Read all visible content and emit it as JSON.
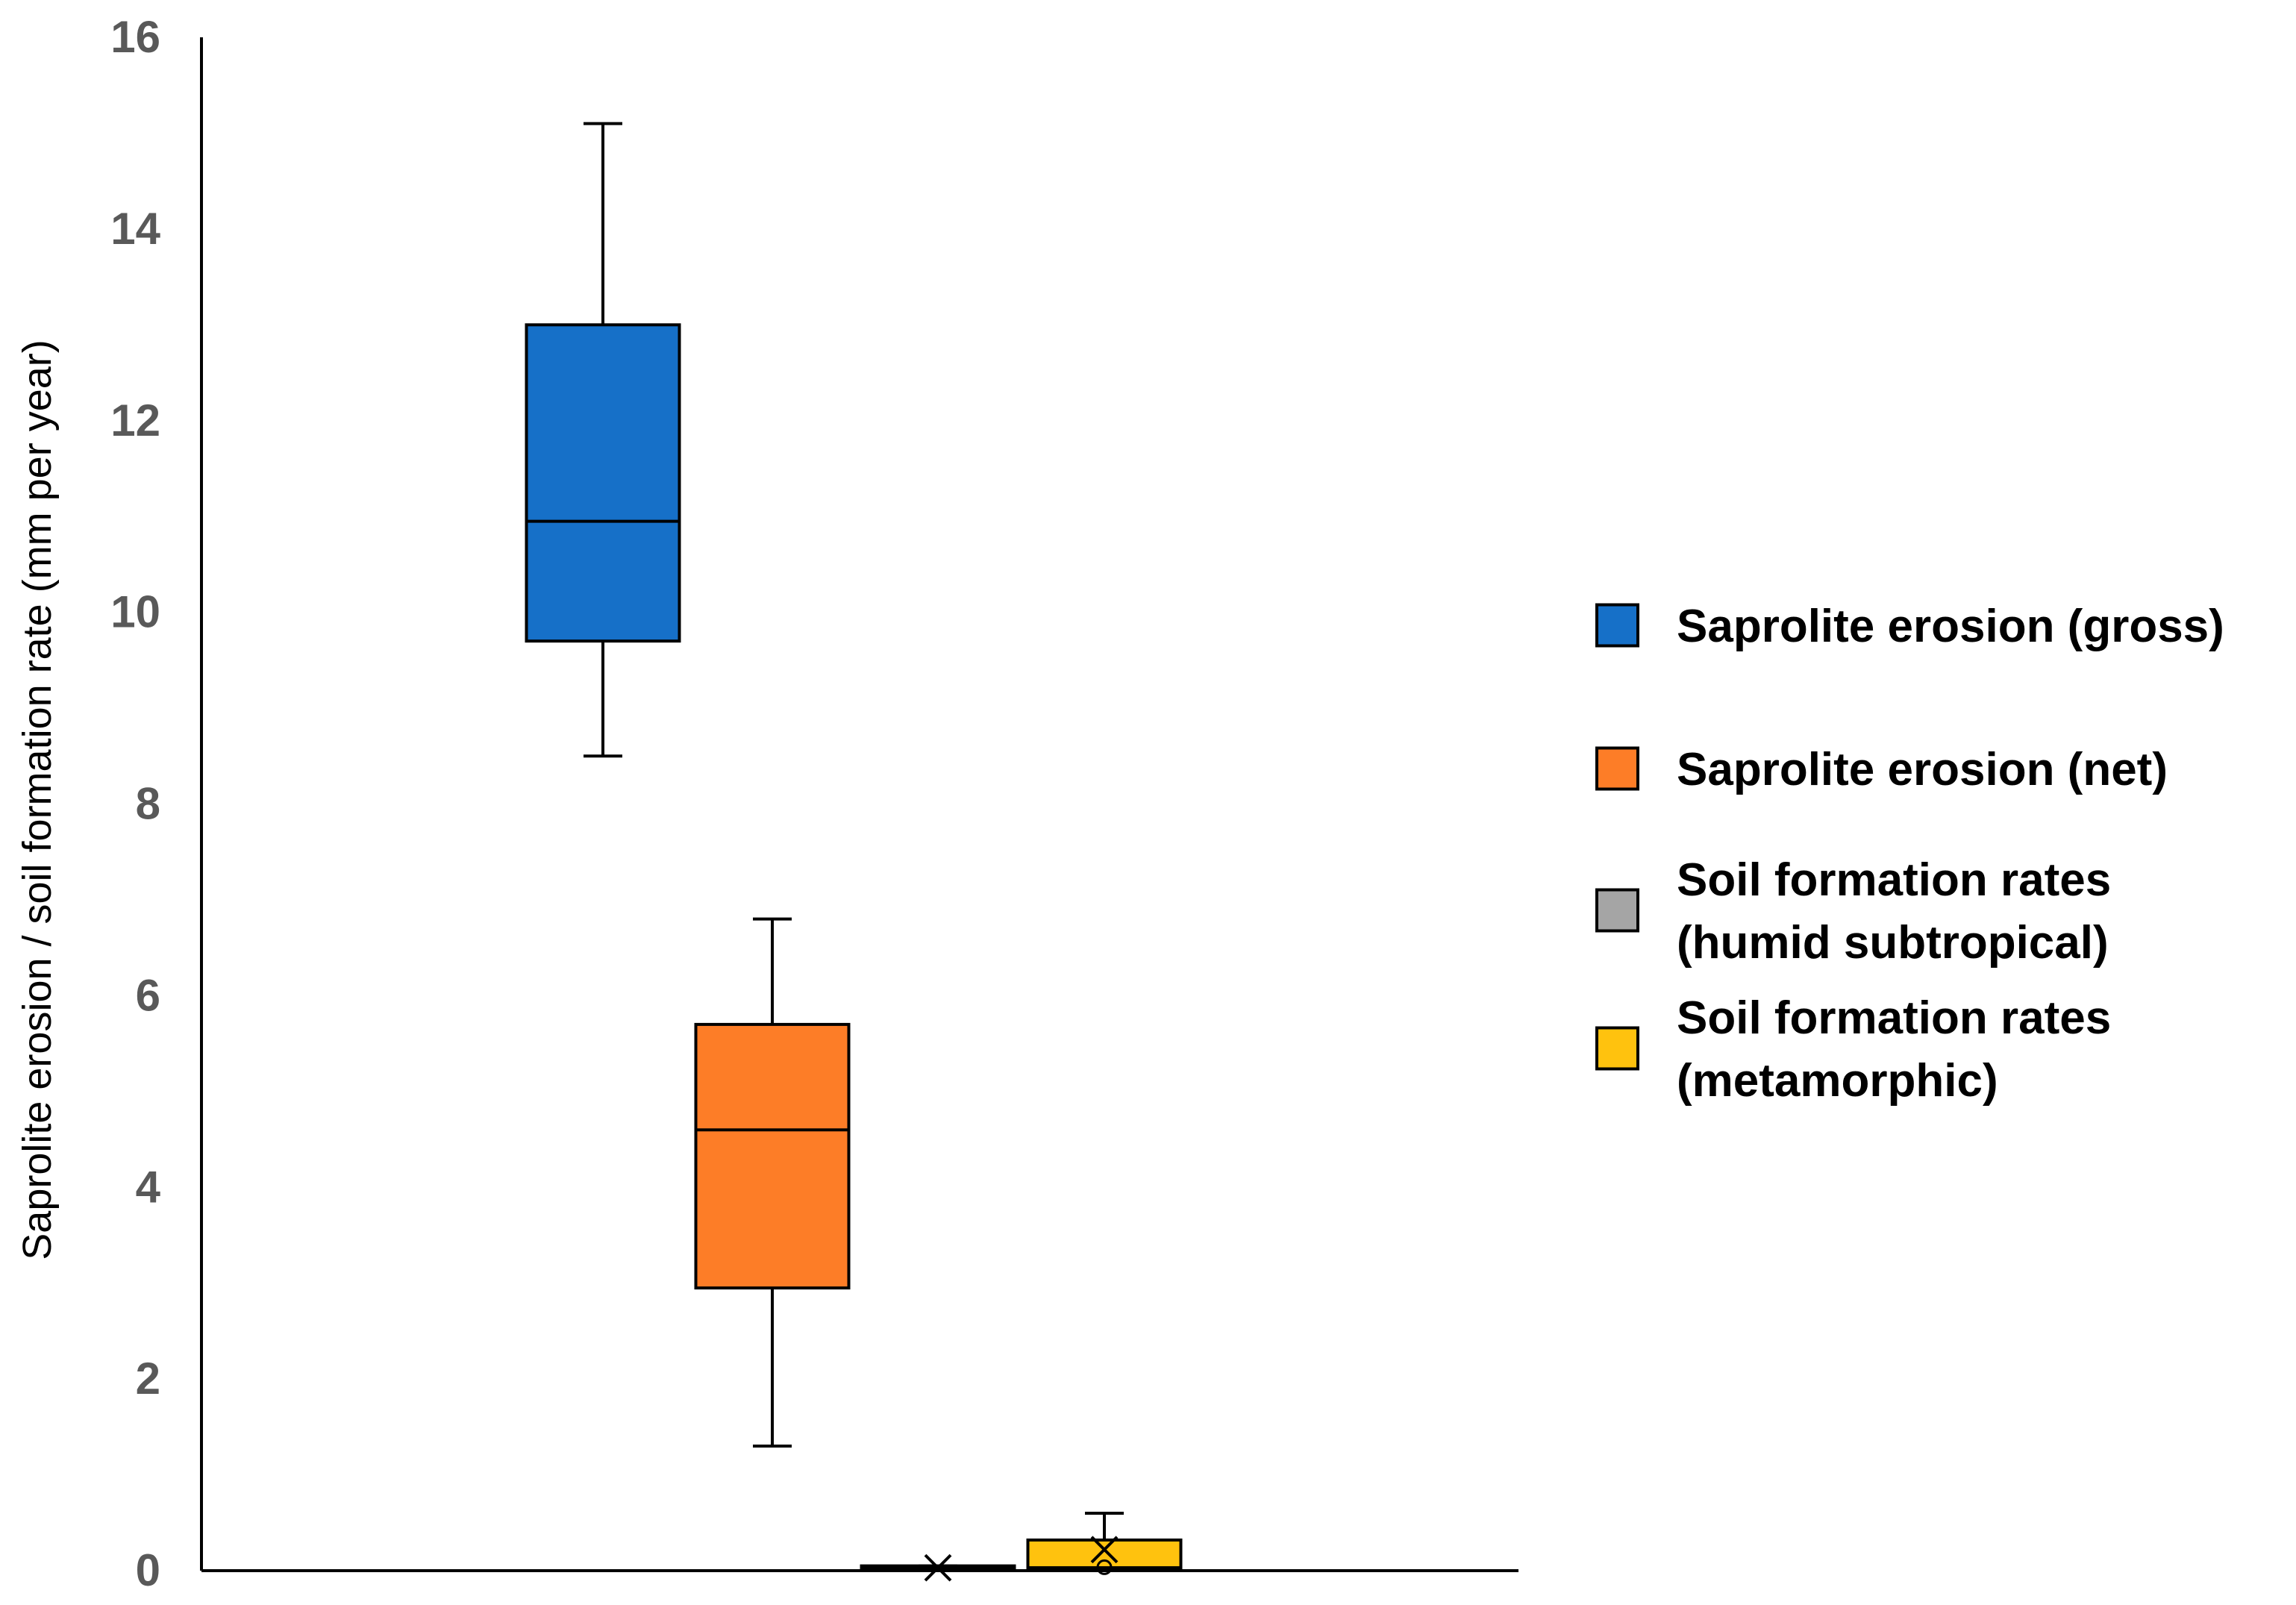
{
  "chart_data": {
    "type": "box",
    "title": "",
    "xlabel": "",
    "ylabel": "Saprolite erosion / soil formation rate  (mm per year)",
    "ylim": [
      0,
      16
    ],
    "yticks": [
      0,
      2,
      4,
      6,
      8,
      10,
      12,
      14,
      16
    ],
    "grid": false,
    "legend_position": "right",
    "series": [
      {
        "name": "Saprolite erosion (gross)",
        "legend_lines": [
          "Saprolite erosion (gross)"
        ],
        "color": "#1670C8",
        "min": 8.5,
        "q1": 9.7,
        "median": 10.95,
        "q3": 13.0,
        "max": 15.1,
        "mean": null
      },
      {
        "name": "Saprolite erosion (net)",
        "legend_lines": [
          "Saprolite erosion (net)"
        ],
        "color": "#FD7D27",
        "min": 1.3,
        "q1": 2.95,
        "median": 4.6,
        "q3": 5.7,
        "max": 6.8,
        "mean": null
      },
      {
        "name": "Soil formation rates (humid subtropical)",
        "legend_lines": [
          "Soil formation rates",
          "(humid subtropical)"
        ],
        "color": "#A5A5A5",
        "min": 0.01,
        "q1": 0.01,
        "median": 0.03,
        "q3": 0.05,
        "max": 0.05,
        "mean": 0.03
      },
      {
        "name": "Soil formation rates (metamorphic)",
        "legend_lines": [
          "Soil formation rates",
          "(metamorphic)"
        ],
        "color": "#FFC20E",
        "min": 0.02,
        "q1": 0.03,
        "median": 0.03,
        "q3": 0.32,
        "max": 0.6,
        "mean": 0.22
      }
    ]
  }
}
